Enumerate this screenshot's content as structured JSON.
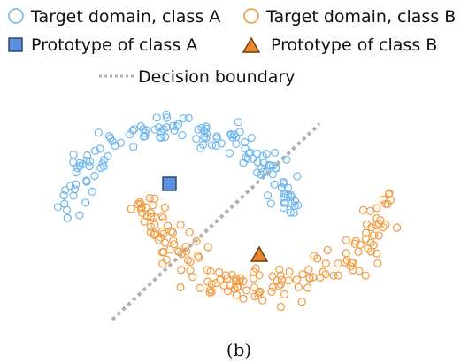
{
  "legend": {
    "target_a": "Target domain, class A",
    "target_b": "Target domain, class B",
    "prototype_a": "Prototype of class A",
    "prototype_b": "Prototype of class B",
    "boundary": "Decision boundary"
  },
  "caption": "(b)",
  "colors": {
    "class_a": "#6fb7ec",
    "class_b": "#f29a3d",
    "prototype_a_fill": "#5b8fe0",
    "prototype_a_stroke": "#2a3f66",
    "prototype_b_fill": "#e8872e",
    "prototype_b_stroke": "#6a3a10",
    "boundary": "#b0b0b0"
  },
  "icons": {
    "target_a": "hollow-circle",
    "target_b": "hollow-circle",
    "prototype_a": "filled-square",
    "prototype_b": "filled-triangle",
    "boundary": "dotted-line"
  }
}
